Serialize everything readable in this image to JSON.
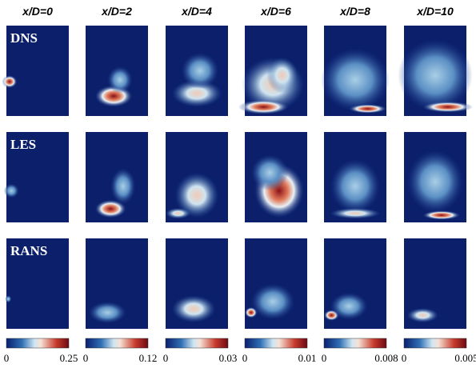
{
  "columns": [
    {
      "header": "x/D=0",
      "colorbar": {
        "min": "0",
        "max": "0.25"
      }
    },
    {
      "header": "x/D=2",
      "colorbar": {
        "min": "0",
        "max": "0.12"
      }
    },
    {
      "header": "x/D=4",
      "colorbar": {
        "min": "0",
        "max": "0.03"
      }
    },
    {
      "header": "x/D=6",
      "colorbar": {
        "min": "0",
        "max": "0.01"
      }
    },
    {
      "header": "x/D=8",
      "colorbar": {
        "min": "0",
        "max": "0.008"
      }
    },
    {
      "header": "x/D=10",
      "colorbar": {
        "min": "0",
        "max": "0.005"
      }
    }
  ],
  "rows": [
    {
      "label": "DNS"
    },
    {
      "label": "LES"
    },
    {
      "label": "RANS"
    }
  ]
}
